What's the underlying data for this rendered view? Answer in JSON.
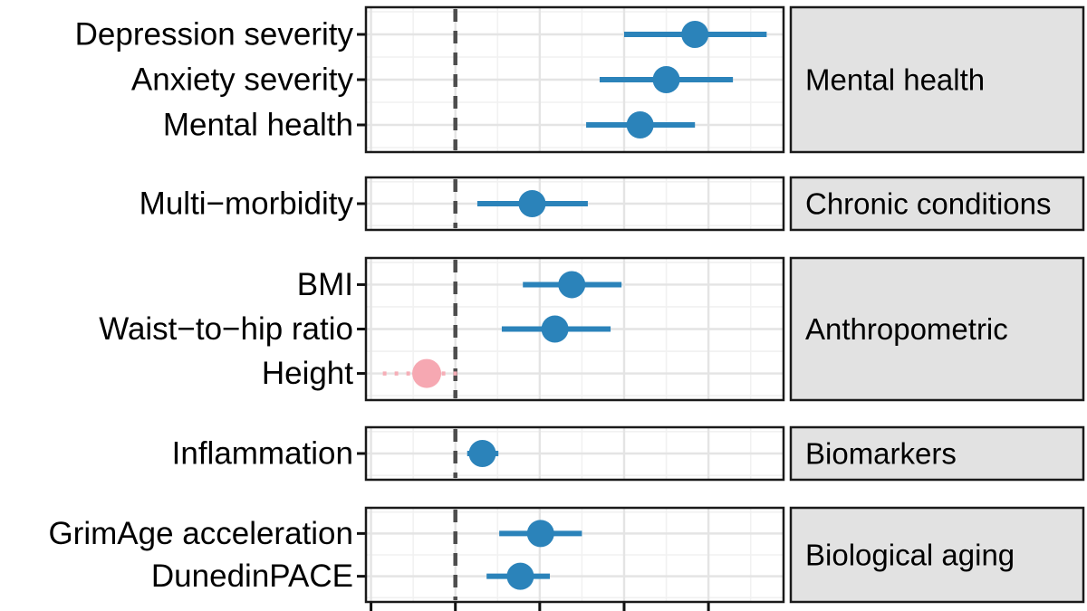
{
  "figure": {
    "background": "#ffffff",
    "description": "Faceted forest plot of associations with 95% confidence intervals; dashed vertical reference line at zero; x-axis tick labels cropped out of view"
  },
  "chart_data": {
    "type": "scatter",
    "subtype": "forest-plot",
    "title": "",
    "xlabel": "",
    "ylabel": "",
    "legend": {
      "visible": false
    },
    "x_axis": {
      "xlim": [
        -0.106,
        0.389
      ],
      "major_tick_values": [
        -0.1,
        0,
        0.1,
        0.2,
        0.3
      ],
      "minor_step": 0.05,
      "tick_labels_visible": false,
      "reference_line": {
        "value": 0,
        "style": "dashed",
        "color": "#4d4d4d"
      }
    },
    "facets": [
      {
        "label": "Mental health",
        "rows": [
          {
            "label": "Depression severity",
            "value": 0.284,
            "ci": [
              0.2,
              0.369
            ],
            "significant": true
          },
          {
            "label": "Anxiety severity",
            "value": 0.25,
            "ci": [
              0.171,
              0.329
            ],
            "significant": true
          },
          {
            "label": "Mental health",
            "value": 0.219,
            "ci": [
              0.155,
              0.284
            ],
            "significant": true
          }
        ]
      },
      {
        "label": "Chronic conditions",
        "rows": [
          {
            "label": "Multi−morbidity",
            "value": 0.091,
            "ci": [
              0.026,
              0.157
            ],
            "significant": true
          }
        ]
      },
      {
        "label": "Anthropometric",
        "rows": [
          {
            "label": "BMI",
            "value": 0.138,
            "ci": [
              0.08,
              0.197
            ],
            "significant": true
          },
          {
            "label": "Waist−to−hip ratio",
            "value": 0.118,
            "ci": [
              0.055,
              0.184
            ],
            "significant": true
          },
          {
            "label": "Height",
            "value": -0.034,
            "ci": [
              -0.086,
              0.009
            ],
            "significant": false
          }
        ]
      },
      {
        "label": "Biomarkers",
        "rows": [
          {
            "label": "Inflammation",
            "value": 0.032,
            "ci": [
              0.014,
              0.051
            ],
            "significant": true
          }
        ]
      },
      {
        "label": "Biological aging",
        "rows": [
          {
            "label": "GrimAge acceleration",
            "value": 0.101,
            "ci": [
              0.052,
              0.15
            ],
            "significant": true
          },
          {
            "label": "DunedinPACE",
            "value": 0.077,
            "ci": [
              0.037,
              0.112
            ],
            "significant": true
          }
        ]
      }
    ],
    "style": {
      "point_significant": "#2b83ba",
      "ci_significant": "#2b83ba",
      "point_nonsignificant": "#f6a8b2",
      "ci_nonsignificant": "#f6aeb7",
      "reference_line": "#4d4d4d",
      "strip_background": "#e2e2e2",
      "strip_border": "#1a1a1a",
      "panel_border": "#1a1a1a",
      "panel_background": "#ffffff",
      "grid_major": "#e4e4e4",
      "grid_minor": "#f1f1f1",
      "axis_tick": "#111111",
      "text": "#000000"
    }
  }
}
